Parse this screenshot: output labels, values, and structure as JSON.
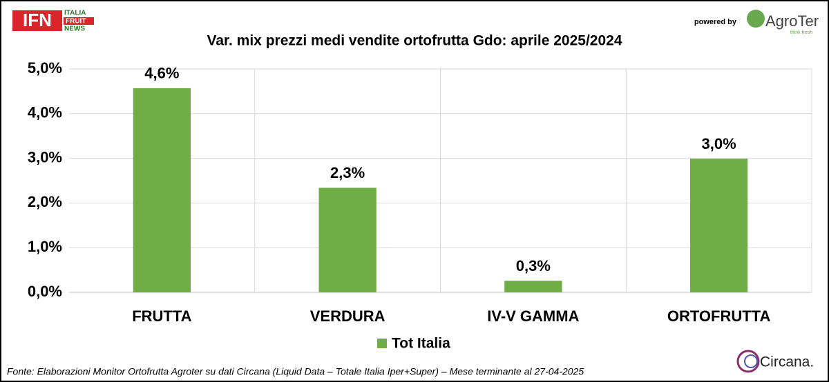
{
  "header": {
    "logo_left": "IFN",
    "logo_left_words": [
      "ITALIA",
      "FRUIT",
      "NEWS"
    ],
    "powered_by": "powered by",
    "logo_right": "AgroTer",
    "logo_right_tagline": "think fresh"
  },
  "footer": {
    "source": "Fonte: Elaborazioni Monitor Ortofrutta Agroter su dati Circana (Liquid Data – Totale Italia Iper+Super) – Mese terminante al 27-04-2025",
    "logo": "Circana."
  },
  "chart_data": {
    "type": "bar",
    "title": "Var. mix prezzi medi vendite ortofrutta Gdo: aprile 2025/2024",
    "categories": [
      "FRUTTA",
      "VERDURA",
      "IV-V GAMMA",
      "ORTOFRUTTA"
    ],
    "series": [
      {
        "name": "Tot Italia",
        "color": "#70ad47",
        "values": [
          4.57,
          2.34,
          0.26,
          2.99
        ],
        "value_labels": [
          "4,6%",
          "2,3%",
          "0,3%",
          "3,0%"
        ]
      }
    ],
    "ylim": [
      0,
      5
    ],
    "yticks": [
      {
        "value": 0,
        "label": "0,0%"
      },
      {
        "value": 1,
        "label": "1,0%"
      },
      {
        "value": 2,
        "label": "2,0%"
      },
      {
        "value": 3,
        "label": "3,0%"
      },
      {
        "value": 4,
        "label": "4,0%"
      },
      {
        "value": 5,
        "label": "5,0%"
      }
    ],
    "grid": true,
    "legend": "bottom"
  }
}
